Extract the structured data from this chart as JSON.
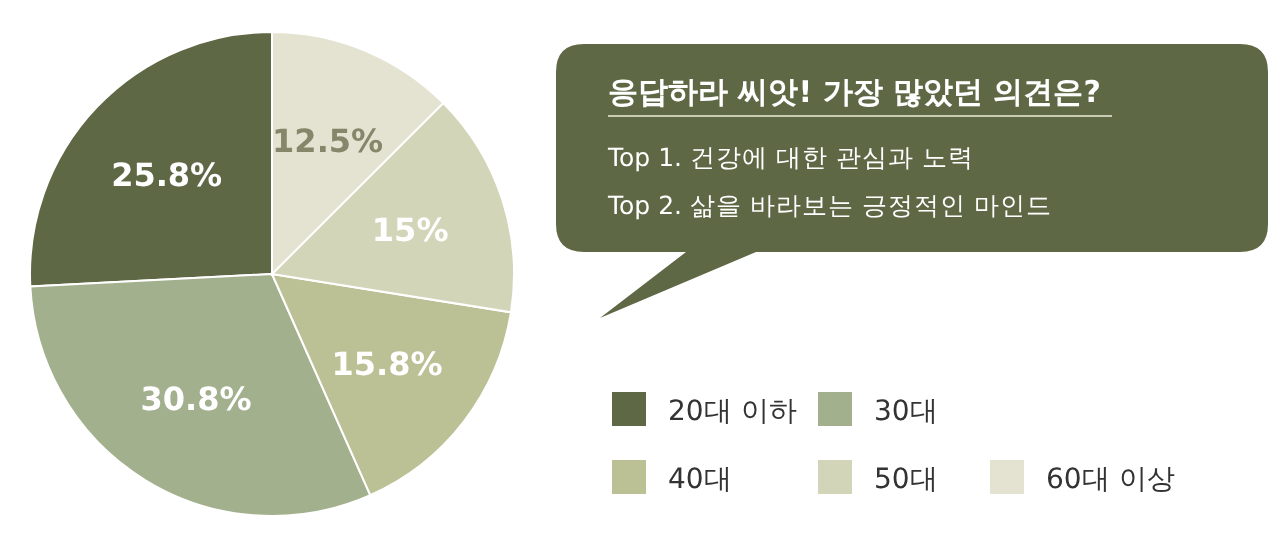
{
  "chart_data": {
    "type": "pie",
    "title": "응답하라 씨앗! 가장 많았던 의견은?",
    "annotations": [
      "Top 1. 건강에 대한 관심과 노력",
      "Top 2. 삶을 바라보는 긍정적인 마인드"
    ],
    "categories": [
      "20대 이하",
      "30대",
      "40대",
      "50대",
      "60대 이상"
    ],
    "values": [
      25.8,
      30.8,
      15.8,
      15,
      12.5
    ],
    "colors": [
      "#5e6845",
      "#a3b08e",
      "#bcc095",
      "#d3d5b8",
      "#e4e3d2"
    ],
    "value_labels": [
      "25.8%",
      "30.8%",
      "15.8%",
      "15%",
      "12.5%"
    ],
    "legend": "bottom right"
  }
}
